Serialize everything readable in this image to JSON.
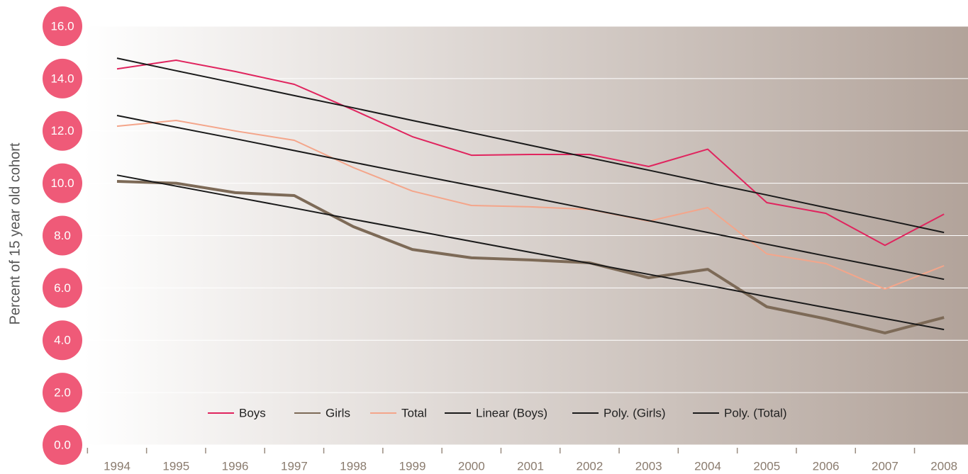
{
  "chart_data": {
    "type": "line",
    "y_axis_label": "Percent of 15 year old cohort",
    "categories": [
      "1994",
      "1995",
      "1996",
      "1997",
      "1998",
      "1999",
      "2000",
      "2001",
      "2002",
      "2003",
      "2004",
      "2005",
      "2006",
      "2007",
      "2008"
    ],
    "series": [
      {
        "name": "Boys",
        "color": "#e0245e",
        "width": 2,
        "values": [
          14.37,
          14.7,
          14.27,
          13.78,
          12.8,
          11.78,
          11.07,
          11.1,
          11.1,
          10.64,
          11.3,
          9.26,
          8.85,
          7.63,
          8.82
        ]
      },
      {
        "name": "Girls",
        "color": "#7d6a57",
        "width": 4,
        "values": [
          10.07,
          10.0,
          9.64,
          9.53,
          8.34,
          7.47,
          7.15,
          7.07,
          6.96,
          6.39,
          6.71,
          5.28,
          4.82,
          4.28,
          4.87
        ]
      },
      {
        "name": "Total",
        "color": "#f4a58a",
        "width": 2,
        "values": [
          12.18,
          12.4,
          12.0,
          11.64,
          10.6,
          9.7,
          9.15,
          9.1,
          9.0,
          8.55,
          9.07,
          7.3,
          6.93,
          5.96,
          6.85
        ]
      },
      {
        "name": "Linear (Boys)",
        "color": "#1a1a1a",
        "width": 2,
        "values": [
          14.78,
          14.3,
          13.83,
          13.35,
          12.88,
          12.4,
          11.93,
          11.45,
          10.97,
          10.5,
          10.02,
          9.55,
          9.07,
          8.6,
          8.12
        ]
      },
      {
        "name": "Poly. (Girls)",
        "color": "#1a1a1a",
        "width": 2,
        "values": [
          10.31,
          9.89,
          9.47,
          9.05,
          8.62,
          8.2,
          7.78,
          7.36,
          6.94,
          6.52,
          6.1,
          5.67,
          5.25,
          4.83,
          4.41
        ]
      },
      {
        "name": "Poly. (Total)",
        "color": "#1a1a1a",
        "width": 2,
        "values": [
          12.59,
          12.14,
          11.7,
          11.25,
          10.8,
          10.35,
          9.91,
          9.46,
          9.01,
          8.57,
          8.12,
          7.67,
          7.22,
          6.78,
          6.33
        ]
      }
    ],
    "ylim": [
      0,
      16
    ],
    "yticks": [
      {
        "value": 0,
        "label": "0.0"
      },
      {
        "value": 2,
        "label": "2.0"
      },
      {
        "value": 4,
        "label": "4.0"
      },
      {
        "value": 6,
        "label": "6.0"
      },
      {
        "value": 8,
        "label": "8.0"
      },
      {
        "value": 10,
        "label": "10.0"
      },
      {
        "value": 12,
        "label": "12.0"
      },
      {
        "value": 14,
        "label": "14.0"
      },
      {
        "value": 16,
        "label": "16.0"
      }
    ],
    "grid": true,
    "legend": "bottom"
  }
}
